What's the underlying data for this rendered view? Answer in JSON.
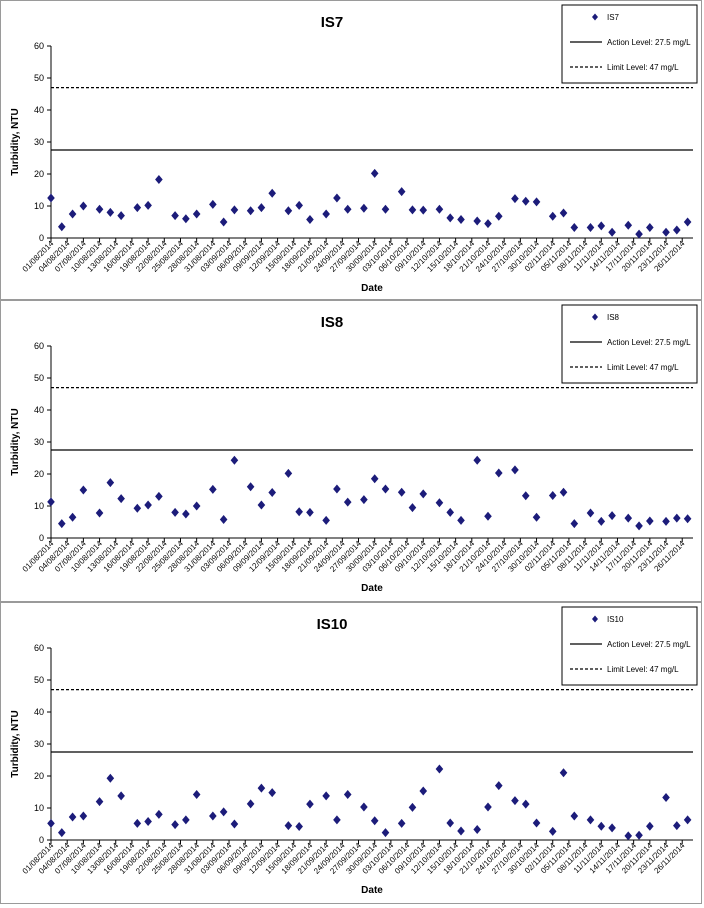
{
  "chart_data": [
    {
      "type": "scatter",
      "title": "IS7",
      "xlabel": "Date",
      "ylabel": "Turbidity, NTU",
      "ylim": [
        0,
        60
      ],
      "yticks": [
        0,
        10,
        20,
        30,
        40,
        50,
        60
      ],
      "xticks": [
        "01/08/2014",
        "04/08/2014",
        "07/08/2014",
        "10/08/2014",
        "13/08/2014",
        "16/08/2014",
        "19/08/2014",
        "22/08/2014",
        "25/08/2014",
        "28/08/2014",
        "31/08/2014",
        "03/09/2014",
        "06/09/2014",
        "09/09/2014",
        "12/09/2014",
        "15/09/2014",
        "18/09/2014",
        "21/09/2014",
        "24/09/2014",
        "27/09/2014",
        "30/09/2014",
        "03/10/2014",
        "06/10/2014",
        "09/10/2014",
        "12/10/2014",
        "15/10/2014",
        "18/10/2014",
        "21/10/2014",
        "24/10/2014",
        "27/10/2014",
        "30/10/2014",
        "02/11/2014",
        "05/11/2014",
        "08/11/2014",
        "11/11/2014",
        "14/11/2014",
        "17/11/2014",
        "20/11/2014",
        "23/11/2014",
        "26/11/2014"
      ],
      "xlim": [
        "2014-08-01",
        "2014-11-28"
      ],
      "grid": false,
      "legend_position": "top-right",
      "series": [
        {
          "name": "IS7",
          "marker": "diamond",
          "color": "#1c1c7a",
          "points": [
            [
              "2014-08-01",
              12.5
            ],
            [
              "2014-08-03",
              3.5
            ],
            [
              "2014-08-05",
              7.5
            ],
            [
              "2014-08-07",
              10
            ],
            [
              "2014-08-10",
              9
            ],
            [
              "2014-08-12",
              8
            ],
            [
              "2014-08-14",
              7
            ],
            [
              "2014-08-17",
              9.5
            ],
            [
              "2014-08-19",
              10.2
            ],
            [
              "2014-08-21",
              18.3
            ],
            [
              "2014-08-24",
              7
            ],
            [
              "2014-08-26",
              6
            ],
            [
              "2014-08-28",
              7.5
            ],
            [
              "2014-08-31",
              10.5
            ],
            [
              "2014-09-02",
              5
            ],
            [
              "2014-09-04",
              8.8
            ],
            [
              "2014-09-07",
              8.5
            ],
            [
              "2014-09-09",
              9.5
            ],
            [
              "2014-09-11",
              14
            ],
            [
              "2014-09-14",
              8.5
            ],
            [
              "2014-09-16",
              10.2
            ],
            [
              "2014-09-18",
              5.8
            ],
            [
              "2014-09-21",
              7.5
            ],
            [
              "2014-09-23",
              12.5
            ],
            [
              "2014-09-25",
              9
            ],
            [
              "2014-09-28",
              9.3
            ],
            [
              "2014-09-30",
              20.2
            ],
            [
              "2014-10-02",
              9
            ],
            [
              "2014-10-05",
              14.5
            ],
            [
              "2014-10-07",
              8.8
            ],
            [
              "2014-10-09",
              8.7
            ],
            [
              "2014-10-12",
              9
            ],
            [
              "2014-10-14",
              6.3
            ],
            [
              "2014-10-16",
              5.8
            ],
            [
              "2014-10-19",
              5.3
            ],
            [
              "2014-10-21",
              4.5
            ],
            [
              "2014-10-23",
              6.8
            ],
            [
              "2014-10-26",
              12.3
            ],
            [
              "2014-10-28",
              11.5
            ],
            [
              "2014-10-30",
              11.3
            ],
            [
              "2014-11-02",
              6.8
            ],
            [
              "2014-11-04",
              7.8
            ],
            [
              "2014-11-06",
              3.3
            ],
            [
              "2014-11-09",
              3.3
            ],
            [
              "2014-11-11",
              3.8
            ],
            [
              "2014-11-13",
              1.8
            ],
            [
              "2014-11-16",
              4
            ],
            [
              "2014-11-18",
              1.2
            ],
            [
              "2014-11-20",
              3.3
            ],
            [
              "2014-11-23",
              1.8
            ],
            [
              "2014-11-25",
              2.5
            ],
            [
              "2014-11-27",
              5
            ]
          ]
        },
        {
          "name": "Action Level: 27.5 mg/L",
          "type": "hline",
          "value": 27.5,
          "style": "solid"
        },
        {
          "name": "Limit Level: 47 mg/L",
          "type": "hline",
          "value": 47,
          "style": "dashed"
        }
      ]
    },
    {
      "type": "scatter",
      "title": "IS8",
      "xlabel": "Date",
      "ylabel": "Turbidity, NTU",
      "ylim": [
        0,
        60
      ],
      "yticks": [
        0,
        10,
        20,
        30,
        40,
        50,
        60
      ],
      "xticks": [
        "01/08/2014",
        "04/08/2014",
        "07/08/2014",
        "10/08/2014",
        "13/08/2014",
        "16/08/2014",
        "19/08/2014",
        "22/08/2014",
        "25/08/2014",
        "28/08/2014",
        "31/08/2014",
        "03/09/2014",
        "06/09/2014",
        "09/09/2014",
        "12/09/2014",
        "15/09/2014",
        "18/09/2014",
        "21/09/2014",
        "24/09/2014",
        "27/09/2014",
        "30/09/2014",
        "03/10/2014",
        "06/10/2014",
        "09/10/2014",
        "12/10/2014",
        "15/10/2014",
        "18/10/2014",
        "21/10/2014",
        "24/10/2014",
        "27/10/2014",
        "30/10/2014",
        "02/11/2014",
        "05/11/2014",
        "08/11/2014",
        "11/11/2014",
        "14/11/2014",
        "17/11/2014",
        "20/11/2014",
        "23/11/2014",
        "26/11/2014"
      ],
      "xlim": [
        "2014-08-01",
        "2014-11-28"
      ],
      "grid": false,
      "legend_position": "top-right",
      "series": [
        {
          "name": "IS8",
          "marker": "diamond",
          "color": "#1c1c7a",
          "points": [
            [
              "2014-08-01",
              11.3
            ],
            [
              "2014-08-03",
              4.5
            ],
            [
              "2014-08-05",
              6.5
            ],
            [
              "2014-08-07",
              15
            ],
            [
              "2014-08-10",
              7.8
            ],
            [
              "2014-08-12",
              17.3
            ],
            [
              "2014-08-14",
              12.3
            ],
            [
              "2014-08-17",
              9.3
            ],
            [
              "2014-08-19",
              10.3
            ],
            [
              "2014-08-21",
              13
            ],
            [
              "2014-08-24",
              8
            ],
            [
              "2014-08-26",
              7.5
            ],
            [
              "2014-08-28",
              10
            ],
            [
              "2014-08-31",
              15.2
            ],
            [
              "2014-09-02",
              5.8
            ],
            [
              "2014-09-04",
              24.3
            ],
            [
              "2014-09-07",
              16
            ],
            [
              "2014-09-09",
              10.3
            ],
            [
              "2014-09-11",
              14.2
            ],
            [
              "2014-09-14",
              20.2
            ],
            [
              "2014-09-16",
              8.2
            ],
            [
              "2014-09-18",
              8
            ],
            [
              "2014-09-21",
              5.5
            ],
            [
              "2014-09-23",
              15.3
            ],
            [
              "2014-09-25",
              11.2
            ],
            [
              "2014-09-28",
              12
            ],
            [
              "2014-09-30",
              18.5
            ],
            [
              "2014-10-02",
              15.3
            ],
            [
              "2014-10-05",
              14.3
            ],
            [
              "2014-10-07",
              9.5
            ],
            [
              "2014-10-09",
              13.8
            ],
            [
              "2014-10-12",
              11
            ],
            [
              "2014-10-14",
              8
            ],
            [
              "2014-10-16",
              5.5
            ],
            [
              "2014-10-19",
              24.3
            ],
            [
              "2014-10-21",
              6.8
            ],
            [
              "2014-10-23",
              20.3
            ],
            [
              "2014-10-26",
              21.3
            ],
            [
              "2014-10-28",
              13.2
            ],
            [
              "2014-10-30",
              6.5
            ],
            [
              "2014-11-02",
              13.3
            ],
            [
              "2014-11-04",
              14.3
            ],
            [
              "2014-11-06",
              4.5
            ],
            [
              "2014-11-09",
              7.8
            ],
            [
              "2014-11-11",
              5.2
            ],
            [
              "2014-11-13",
              7
            ],
            [
              "2014-11-16",
              6.2
            ],
            [
              "2014-11-18",
              3.8
            ],
            [
              "2014-11-20",
              5.3
            ],
            [
              "2014-11-23",
              5.2
            ],
            [
              "2014-11-25",
              6.2
            ],
            [
              "2014-11-27",
              6
            ]
          ]
        },
        {
          "name": "Action Level: 27.5 mg/L",
          "type": "hline",
          "value": 27.5,
          "style": "solid"
        },
        {
          "name": "Limit Level: 47 mg/L",
          "type": "hline",
          "value": 47,
          "style": "dashed"
        }
      ]
    },
    {
      "type": "scatter",
      "title": "IS10",
      "xlabel": "Date",
      "ylabel": "Turbidity, NTU",
      "ylim": [
        0,
        60
      ],
      "yticks": [
        0,
        10,
        20,
        30,
        40,
        50,
        60
      ],
      "xticks": [
        "01/08/2014",
        "04/08/2014",
        "07/08/2014",
        "10/08/2014",
        "13/08/2014",
        "16/08/2014",
        "19/08/2014",
        "22/08/2014",
        "25/08/2014",
        "28/08/2014",
        "31/08/2014",
        "03/09/2014",
        "06/09/2014",
        "09/09/2014",
        "12/09/2014",
        "15/09/2014",
        "18/09/2014",
        "21/09/2014",
        "24/09/2014",
        "27/09/2014",
        "30/09/2014",
        "03/10/2014",
        "06/10/2014",
        "09/10/2014",
        "12/10/2014",
        "15/10/2014",
        "18/10/2014",
        "21/10/2014",
        "24/10/2014",
        "27/10/2014",
        "30/10/2014",
        "02/11/2014",
        "05/11/2014",
        "08/11/2014",
        "11/11/2014",
        "14/11/2014",
        "17/11/2014",
        "20/11/2014",
        "23/11/2014",
        "26/11/2014"
      ],
      "xlim": [
        "2014-08-01",
        "2014-11-28"
      ],
      "grid": false,
      "legend_position": "top-right",
      "series": [
        {
          "name": "IS10",
          "marker": "diamond",
          "color": "#1c1c7a",
          "points": [
            [
              "2014-08-01",
              5.2
            ],
            [
              "2014-08-03",
              2.3
            ],
            [
              "2014-08-05",
              7.2
            ],
            [
              "2014-08-07",
              7.5
            ],
            [
              "2014-08-10",
              12
            ],
            [
              "2014-08-12",
              19.3
            ],
            [
              "2014-08-14",
              13.8
            ],
            [
              "2014-08-17",
              5.2
            ],
            [
              "2014-08-19",
              5.8
            ],
            [
              "2014-08-21",
              8
            ],
            [
              "2014-08-24",
              4.8
            ],
            [
              "2014-08-26",
              6.3
            ],
            [
              "2014-08-28",
              14.2
            ],
            [
              "2014-08-31",
              7.5
            ],
            [
              "2014-09-02",
              8.8
            ],
            [
              "2014-09-04",
              5
            ],
            [
              "2014-09-07",
              11.3
            ],
            [
              "2014-09-09",
              16.2
            ],
            [
              "2014-09-11",
              14.8
            ],
            [
              "2014-09-14",
              4.5
            ],
            [
              "2014-09-16",
              4.2
            ],
            [
              "2014-09-18",
              11.2
            ],
            [
              "2014-09-21",
              13.8
            ],
            [
              "2014-09-23",
              6.3
            ],
            [
              "2014-09-25",
              14.2
            ],
            [
              "2014-09-28",
              10.3
            ],
            [
              "2014-09-30",
              6
            ],
            [
              "2014-10-02",
              2.3
            ],
            [
              "2014-10-05",
              5.2
            ],
            [
              "2014-10-07",
              10.2
            ],
            [
              "2014-10-09",
              15.3
            ],
            [
              "2014-10-12",
              22.2
            ],
            [
              "2014-10-14",
              5.3
            ],
            [
              "2014-10-16",
              2.8
            ],
            [
              "2014-10-19",
              3.3
            ],
            [
              "2014-10-21",
              10.3
            ],
            [
              "2014-10-23",
              17
            ],
            [
              "2014-10-26",
              12.3
            ],
            [
              "2014-10-28",
              11.2
            ],
            [
              "2014-10-30",
              5.3
            ],
            [
              "2014-11-02",
              2.7
            ],
            [
              "2014-11-04",
              21
            ],
            [
              "2014-11-06",
              7.5
            ],
            [
              "2014-11-09",
              6.3
            ],
            [
              "2014-11-11",
              4.3
            ],
            [
              "2014-11-13",
              3.8
            ],
            [
              "2014-11-16",
              1.3
            ],
            [
              "2014-11-18",
              1.5
            ],
            [
              "2014-11-20",
              4.3
            ],
            [
              "2014-11-23",
              13.3
            ],
            [
              "2014-11-25",
              4.5
            ],
            [
              "2014-11-27",
              6.3
            ]
          ]
        },
        {
          "name": "Action Level: 27.5 mg/L",
          "type": "hline",
          "value": 27.5,
          "style": "solid"
        },
        {
          "name": "Limit Level: 47 mg/L",
          "type": "hline",
          "value": 47,
          "style": "dashed"
        }
      ]
    }
  ]
}
